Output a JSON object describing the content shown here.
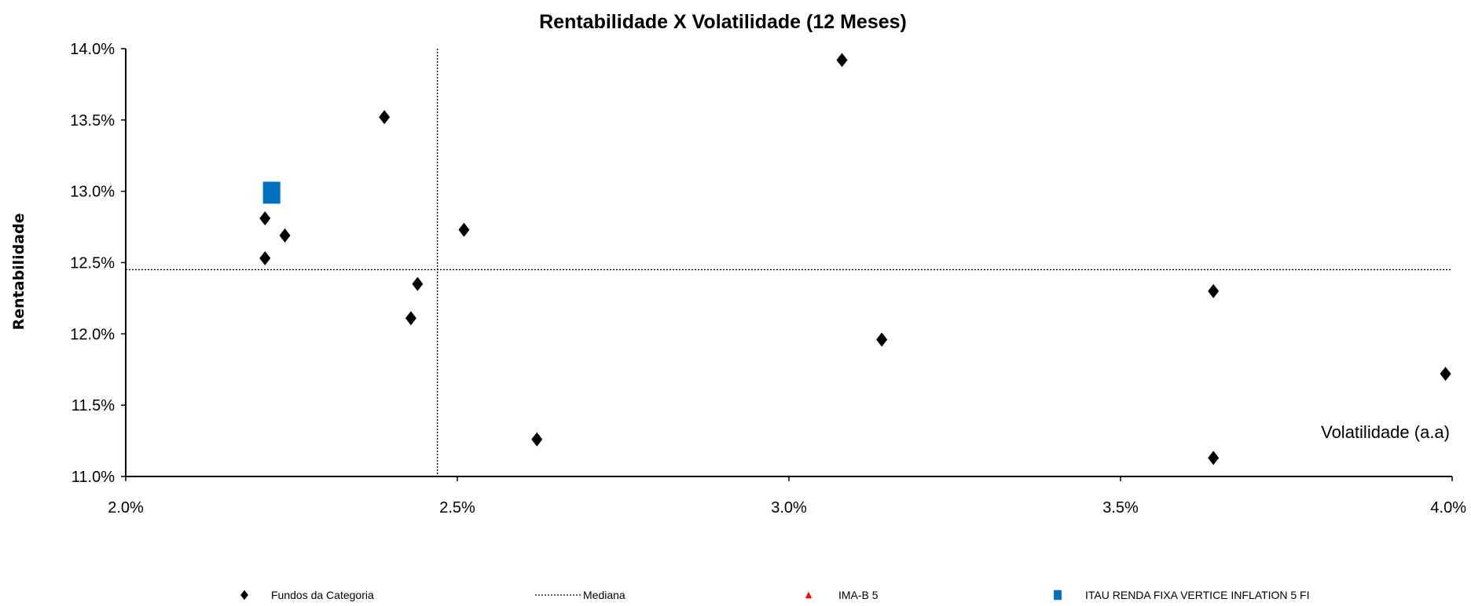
{
  "chart_data": {
    "type": "scatter",
    "title": "Rentabilidade X Volatilidade (12 Meses)",
    "xlabel": "Volatilidade (a.a)",
    "ylabel": "Rentabilidade",
    "xlim": [
      0.02,
      0.04
    ],
    "ylim": [
      0.11,
      0.14
    ],
    "x_ticks": [
      "2.0%",
      "2.5%",
      "3.0%",
      "3.5%",
      "4.0%"
    ],
    "y_ticks": [
      "11.0%",
      "11.5%",
      "12.0%",
      "12.5%",
      "13.0%",
      "13.5%",
      "14.0%"
    ],
    "median": {
      "x": 0.0247,
      "y": 0.1245
    },
    "series": [
      {
        "name": "Fundos da Categoria",
        "marker": "diamond",
        "color": "#000000",
        "points": [
          {
            "x": 0.0308,
            "y": 0.1392
          },
          {
            "x": 0.0239,
            "y": 0.1352
          },
          {
            "x": 0.0221,
            "y": 0.1281
          },
          {
            "x": 0.0224,
            "y": 0.1269
          },
          {
            "x": 0.0221,
            "y": 0.1253
          },
          {
            "x": 0.0251,
            "y": 0.1273
          },
          {
            "x": 0.0244,
            "y": 0.1235
          },
          {
            "x": 0.0243,
            "y": 0.1211
          },
          {
            "x": 0.0314,
            "y": 0.1196
          },
          {
            "x": 0.0364,
            "y": 0.123
          },
          {
            "x": 0.0399,
            "y": 0.1172
          },
          {
            "x": 0.0262,
            "y": 0.1126
          },
          {
            "x": 0.0364,
            "y": 0.1113
          }
        ]
      },
      {
        "name": "Mediana",
        "marker": "dotted-line",
        "color": "#000000",
        "points": []
      },
      {
        "name": "IMA-B 5",
        "marker": "triangle",
        "color": "#ff0000",
        "points": []
      },
      {
        "name": "ITAU RENDA FIXA VERTICE INFLATION 5 FI",
        "marker": "square",
        "color": "#0070c0",
        "points": [
          {
            "x": 0.0222,
            "y": 0.1299
          }
        ]
      }
    ],
    "grid": false,
    "legend_position": "bottom"
  }
}
